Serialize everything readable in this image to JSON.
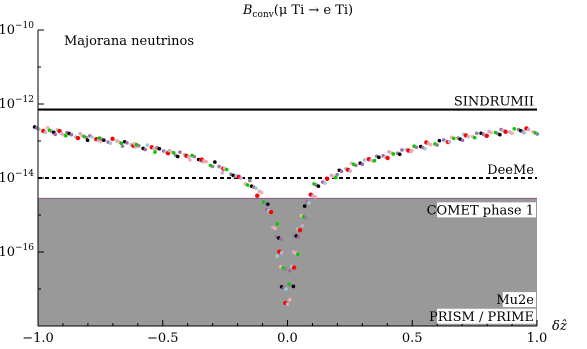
{
  "chart_data": {
    "type": "scatter",
    "title": "B_conv(μ Ti → e Ti)",
    "title_parts": {
      "base": "B",
      "sub": "conv",
      "rest": "(μ Ti → e Ti)"
    },
    "xlabel": "δẑ",
    "ylabel": "",
    "log_y": true,
    "grid": false,
    "xlim": [
      -1.0,
      1.0
    ],
    "ylim": [
      1e-18,
      1e-10
    ],
    "x_ticks": [
      {
        "value": -1.0,
        "label": "−1.0"
      },
      {
        "value": -0.5,
        "label": "−0.5"
      },
      {
        "value": 0.0,
        "label": "0.0"
      },
      {
        "value": 0.5,
        "label": "0.5"
      },
      {
        "value": 1.0,
        "label": "1.0"
      }
    ],
    "y_ticks": [
      {
        "exp": -10,
        "label_base": "10",
        "label_exp": "−10"
      },
      {
        "exp": -12,
        "label_base": "10",
        "label_exp": "−12"
      },
      {
        "exp": -14,
        "label_base": "10",
        "label_exp": "−14"
      },
      {
        "exp": -16,
        "label_base": "10",
        "label_exp": "−16"
      }
    ],
    "annotation": "Majorana neutrinos",
    "limits": [
      {
        "name": "SINDRUMII",
        "exp": -12.15,
        "style": "solid",
        "color": "#000000"
      },
      {
        "name": "DeeMe",
        "exp": -14.0,
        "style": "dotted",
        "color": "#000000"
      },
      {
        "name": "COMET phase 1",
        "exp": -14.55,
        "style": "shaded",
        "color": "#999999"
      },
      {
        "name": "Mu2e",
        "exp": -17.3,
        "style": "label",
        "color": "#999999"
      },
      {
        "name": "PRISM / PRIME",
        "exp": -17.75,
        "style": "label",
        "color": "#999999"
      }
    ],
    "series_colors": [
      "#000000",
      "#ff0000",
      "#00cc00",
      "#aa66aa",
      "#ccaacc",
      "#888888",
      "#99cccc",
      "#ffaaaa"
    ],
    "series": [
      {
        "points": [
          [
            -1.0,
            -12.68
          ],
          [
            -0.97,
            -12.7
          ],
          [
            -0.95,
            -12.74
          ],
          [
            -0.92,
            -12.76
          ],
          [
            -0.9,
            -12.8
          ],
          [
            -0.87,
            -12.83
          ],
          [
            -0.84,
            -12.86
          ],
          [
            -0.82,
            -12.88
          ],
          [
            -0.79,
            -12.92
          ],
          [
            -0.76,
            -12.95
          ],
          [
            -0.74,
            -12.98
          ],
          [
            -0.71,
            -13.0
          ],
          [
            -0.68,
            -13.03
          ],
          [
            -0.65,
            -13.08
          ],
          [
            -0.62,
            -13.1
          ],
          [
            -0.6,
            -13.13
          ],
          [
            -0.57,
            -13.17
          ],
          [
            -0.54,
            -13.2
          ],
          [
            -0.52,
            -13.24
          ],
          [
            -0.49,
            -13.27
          ],
          [
            -0.46,
            -13.32
          ],
          [
            -0.44,
            -13.36
          ],
          [
            -0.41,
            -13.4
          ],
          [
            -0.38,
            -13.45
          ],
          [
            -0.35,
            -13.5
          ],
          [
            -0.33,
            -13.56
          ],
          [
            -0.3,
            -13.63
          ],
          [
            -0.27,
            -13.72
          ],
          [
            -0.25,
            -13.8
          ],
          [
            -0.22,
            -13.9
          ],
          [
            -0.19,
            -14.0
          ],
          [
            -0.16,
            -14.13
          ],
          [
            -0.14,
            -14.25
          ],
          [
            -0.11,
            -14.42
          ],
          [
            -0.09,
            -14.65
          ],
          [
            -0.07,
            -14.92
          ],
          [
            -0.05,
            -15.3
          ],
          [
            -0.04,
            -15.62
          ],
          [
            -0.03,
            -16.05
          ],
          [
            -0.02,
            -16.4
          ],
          [
            -0.01,
            -17.0
          ],
          [
            0.0,
            -17.35
          ],
          [
            0.01,
            -16.9
          ],
          [
            0.02,
            -16.45
          ],
          [
            0.03,
            -16.0
          ],
          [
            0.04,
            -15.6
          ],
          [
            0.05,
            -15.35
          ],
          [
            0.06,
            -15.05
          ],
          [
            0.08,
            -14.7
          ],
          [
            0.1,
            -14.45
          ],
          [
            0.12,
            -14.22
          ],
          [
            0.15,
            -14.08
          ],
          [
            0.18,
            -13.96
          ],
          [
            0.21,
            -13.85
          ],
          [
            0.24,
            -13.75
          ],
          [
            0.27,
            -13.66
          ],
          [
            0.3,
            -13.57
          ],
          [
            0.33,
            -13.52
          ],
          [
            0.36,
            -13.47
          ],
          [
            0.39,
            -13.4
          ],
          [
            0.42,
            -13.35
          ],
          [
            0.45,
            -13.3
          ],
          [
            0.48,
            -13.26
          ],
          [
            0.51,
            -13.2
          ],
          [
            0.54,
            -13.15
          ],
          [
            0.57,
            -13.1
          ],
          [
            0.6,
            -13.05
          ],
          [
            0.63,
            -13.0
          ],
          [
            0.66,
            -12.96
          ],
          [
            0.69,
            -12.92
          ],
          [
            0.72,
            -12.88
          ],
          [
            0.75,
            -12.85
          ],
          [
            0.78,
            -12.82
          ],
          [
            0.81,
            -12.8
          ],
          [
            0.84,
            -12.77
          ],
          [
            0.87,
            -12.75
          ],
          [
            0.9,
            -12.73
          ],
          [
            0.93,
            -12.72
          ],
          [
            0.96,
            -12.72
          ],
          [
            0.99,
            -12.75
          ]
        ]
      }
    ]
  }
}
